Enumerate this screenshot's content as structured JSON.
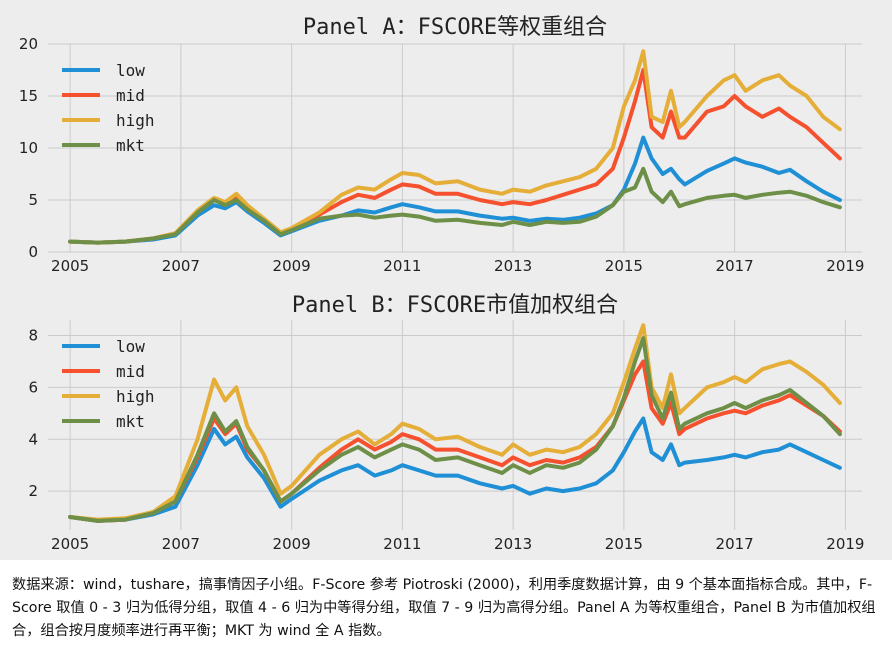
{
  "chart_data": [
    {
      "type": "line",
      "title": "Panel A：FSCORE等权重组合",
      "xlim": [
        2004.6,
        2019.3
      ],
      "ylim": [
        0,
        20
      ],
      "yticks": [
        0,
        5,
        10,
        15,
        20
      ],
      "xticks": [
        2005,
        2007,
        2009,
        2011,
        2013,
        2015,
        2017,
        2019
      ],
      "grid": true,
      "legend_position": "top-left",
      "series": [
        {
          "name": "low",
          "color": "#1f8fd6",
          "x": [
            2005.0,
            2005.5,
            2006.0,
            2006.5,
            2006.9,
            2007.3,
            2007.6,
            2007.8,
            2008.0,
            2008.2,
            2008.5,
            2008.8,
            2009.0,
            2009.5,
            2009.9,
            2010.2,
            2010.5,
            2010.8,
            2011.0,
            2011.3,
            2011.6,
            2012.0,
            2012.4,
            2012.8,
            2013.0,
            2013.3,
            2013.6,
            2013.9,
            2014.2,
            2014.5,
            2014.8,
            2015.0,
            2015.2,
            2015.35,
            2015.5,
            2015.7,
            2015.85,
            2016.0,
            2016.1,
            2016.5,
            2016.8,
            2017.0,
            2017.2,
            2017.5,
            2017.8,
            2018.0,
            2018.3,
            2018.6,
            2018.9
          ],
          "y": [
            1.0,
            0.9,
            1.0,
            1.2,
            1.6,
            3.5,
            4.5,
            4.2,
            4.8,
            3.9,
            2.8,
            1.6,
            2.0,
            3.0,
            3.5,
            4.0,
            3.8,
            4.3,
            4.6,
            4.3,
            3.9,
            3.9,
            3.5,
            3.2,
            3.3,
            3.0,
            3.2,
            3.1,
            3.3,
            3.7,
            4.5,
            6.0,
            8.5,
            11.0,
            9.0,
            7.5,
            8.0,
            7.0,
            6.5,
            7.8,
            8.5,
            9.0,
            8.6,
            8.2,
            7.6,
            7.9,
            6.8,
            5.8,
            5.0
          ]
        },
        {
          "name": "mid",
          "color": "#f5512e",
          "x": [
            2005.0,
            2005.5,
            2006.0,
            2006.5,
            2006.9,
            2007.3,
            2007.6,
            2007.8,
            2008.0,
            2008.2,
            2008.5,
            2008.8,
            2009.0,
            2009.5,
            2009.9,
            2010.2,
            2010.5,
            2010.8,
            2011.0,
            2011.3,
            2011.6,
            2012.0,
            2012.4,
            2012.8,
            2013.0,
            2013.3,
            2013.6,
            2013.9,
            2014.2,
            2014.5,
            2014.8,
            2015.0,
            2015.2,
            2015.35,
            2015.5,
            2015.7,
            2015.85,
            2016.0,
            2016.1,
            2016.5,
            2016.8,
            2017.0,
            2017.2,
            2017.5,
            2017.8,
            2018.0,
            2018.3,
            2018.6,
            2018.9
          ],
          "y": [
            1.0,
            0.9,
            1.0,
            1.3,
            1.8,
            3.8,
            5.0,
            4.6,
            5.2,
            4.3,
            3.0,
            1.8,
            2.2,
            3.6,
            4.8,
            5.5,
            5.2,
            6.0,
            6.5,
            6.3,
            5.6,
            5.6,
            5.0,
            4.6,
            4.8,
            4.6,
            5.0,
            5.5,
            6.0,
            6.5,
            8.0,
            11.0,
            14.5,
            17.5,
            12.0,
            11.0,
            13.5,
            11.0,
            11.0,
            13.5,
            14.0,
            15.0,
            14.0,
            13.0,
            13.8,
            13.0,
            12.0,
            10.5,
            9.0
          ]
        },
        {
          "name": "high",
          "color": "#e5ae38",
          "x": [
            2005.0,
            2005.5,
            2006.0,
            2006.5,
            2006.9,
            2007.3,
            2007.6,
            2007.8,
            2008.0,
            2008.2,
            2008.5,
            2008.8,
            2009.0,
            2009.5,
            2009.9,
            2010.2,
            2010.5,
            2010.8,
            2011.0,
            2011.3,
            2011.6,
            2012.0,
            2012.4,
            2012.8,
            2013.0,
            2013.3,
            2013.6,
            2013.9,
            2014.2,
            2014.5,
            2014.8,
            2015.0,
            2015.2,
            2015.35,
            2015.5,
            2015.7,
            2015.85,
            2016.0,
            2016.1,
            2016.5,
            2016.8,
            2017.0,
            2017.2,
            2017.5,
            2017.8,
            2018.0,
            2018.3,
            2018.6,
            2018.9
          ],
          "y": [
            1.0,
            0.9,
            1.0,
            1.3,
            1.8,
            4.0,
            5.2,
            4.8,
            5.6,
            4.5,
            3.2,
            1.9,
            2.3,
            3.8,
            5.5,
            6.2,
            6.0,
            7.0,
            7.6,
            7.4,
            6.6,
            6.8,
            6.0,
            5.6,
            6.0,
            5.8,
            6.4,
            6.8,
            7.2,
            8.0,
            10.0,
            14.0,
            16.5,
            19.3,
            13.0,
            12.5,
            15.5,
            12.0,
            12.5,
            15.0,
            16.5,
            17.0,
            15.5,
            16.5,
            17.0,
            16.0,
            15.0,
            13.0,
            11.8
          ]
        },
        {
          "name": "mkt",
          "color": "#6d8f47",
          "x": [
            2005.0,
            2005.5,
            2006.0,
            2006.5,
            2006.9,
            2007.3,
            2007.6,
            2007.8,
            2008.0,
            2008.2,
            2008.5,
            2008.8,
            2009.0,
            2009.5,
            2009.9,
            2010.2,
            2010.5,
            2010.8,
            2011.0,
            2011.3,
            2011.6,
            2012.0,
            2012.4,
            2012.8,
            2013.0,
            2013.3,
            2013.6,
            2013.9,
            2014.2,
            2014.5,
            2014.8,
            2015.0,
            2015.2,
            2015.35,
            2015.5,
            2015.7,
            2015.85,
            2016.0,
            2016.1,
            2016.5,
            2016.8,
            2017.0,
            2017.2,
            2017.5,
            2017.8,
            2018.0,
            2018.3,
            2018.6,
            2018.9
          ],
          "y": [
            1.0,
            0.9,
            1.0,
            1.3,
            1.7,
            3.8,
            5.0,
            4.5,
            5.0,
            4.1,
            3.0,
            1.7,
            2.1,
            3.2,
            3.5,
            3.6,
            3.3,
            3.5,
            3.6,
            3.4,
            3.0,
            3.1,
            2.8,
            2.6,
            2.9,
            2.6,
            2.9,
            2.8,
            2.9,
            3.4,
            4.5,
            5.8,
            6.2,
            8.0,
            5.8,
            4.8,
            5.8,
            4.4,
            4.6,
            5.2,
            5.4,
            5.5,
            5.2,
            5.5,
            5.7,
            5.8,
            5.4,
            4.8,
            4.3
          ]
        }
      ]
    },
    {
      "type": "line",
      "title": "Panel B：FSCORE市值加权组合",
      "xlim": [
        2004.6,
        2019.3
      ],
      "ylim": [
        0.5,
        8.6
      ],
      "yticks": [
        2,
        4,
        6,
        8
      ],
      "xticks": [
        2005,
        2007,
        2009,
        2011,
        2013,
        2015,
        2017,
        2019
      ],
      "grid": true,
      "legend_position": "top-left",
      "series": [
        {
          "name": "low",
          "color": "#1f8fd6",
          "x": [
            2005.0,
            2005.5,
            2006.0,
            2006.5,
            2006.9,
            2007.3,
            2007.6,
            2007.8,
            2008.0,
            2008.2,
            2008.5,
            2008.8,
            2009.0,
            2009.5,
            2009.9,
            2010.2,
            2010.5,
            2010.8,
            2011.0,
            2011.3,
            2011.6,
            2012.0,
            2012.4,
            2012.8,
            2013.0,
            2013.3,
            2013.6,
            2013.9,
            2014.2,
            2014.5,
            2014.8,
            2015.0,
            2015.2,
            2015.35,
            2015.5,
            2015.7,
            2015.85,
            2016.0,
            2016.1,
            2016.5,
            2016.8,
            2017.0,
            2017.2,
            2017.5,
            2017.8,
            2018.0,
            2018.3,
            2018.6,
            2018.9
          ],
          "y": [
            1.0,
            0.85,
            0.9,
            1.1,
            1.4,
            3.0,
            4.4,
            3.8,
            4.1,
            3.3,
            2.5,
            1.4,
            1.7,
            2.4,
            2.8,
            3.0,
            2.6,
            2.8,
            3.0,
            2.8,
            2.6,
            2.6,
            2.3,
            2.1,
            2.2,
            1.9,
            2.1,
            2.0,
            2.1,
            2.3,
            2.8,
            3.5,
            4.3,
            4.8,
            3.5,
            3.2,
            3.8,
            3.0,
            3.1,
            3.2,
            3.3,
            3.4,
            3.3,
            3.5,
            3.6,
            3.8,
            3.5,
            3.2,
            2.9
          ]
        },
        {
          "name": "mid",
          "color": "#f5512e",
          "x": [
            2005.0,
            2005.5,
            2006.0,
            2006.5,
            2006.9,
            2007.3,
            2007.6,
            2007.8,
            2008.0,
            2008.2,
            2008.5,
            2008.8,
            2009.0,
            2009.5,
            2009.9,
            2010.2,
            2010.5,
            2010.8,
            2011.0,
            2011.3,
            2011.6,
            2012.0,
            2012.4,
            2012.8,
            2013.0,
            2013.3,
            2013.6,
            2013.9,
            2014.2,
            2014.5,
            2014.8,
            2015.0,
            2015.2,
            2015.35,
            2015.5,
            2015.7,
            2015.85,
            2016.0,
            2016.1,
            2016.5,
            2016.8,
            2017.0,
            2017.2,
            2017.5,
            2017.8,
            2018.0,
            2018.3,
            2018.6,
            2018.9
          ],
          "y": [
            1.0,
            0.85,
            0.9,
            1.15,
            1.6,
            3.3,
            4.8,
            4.2,
            4.6,
            3.6,
            2.8,
            1.6,
            1.9,
            2.9,
            3.6,
            4.0,
            3.6,
            3.9,
            4.2,
            4.0,
            3.6,
            3.6,
            3.3,
            3.0,
            3.3,
            3.0,
            3.2,
            3.1,
            3.3,
            3.7,
            4.5,
            5.5,
            6.5,
            7.0,
            5.2,
            4.6,
            5.4,
            4.2,
            4.4,
            4.8,
            5.0,
            5.1,
            5.0,
            5.3,
            5.5,
            5.7,
            5.3,
            4.9,
            4.3
          ]
        },
        {
          "name": "high",
          "color": "#e5ae38",
          "x": [
            2005.0,
            2005.5,
            2006.0,
            2006.5,
            2006.9,
            2007.3,
            2007.6,
            2007.8,
            2008.0,
            2008.2,
            2008.5,
            2008.8,
            2009.0,
            2009.5,
            2009.9,
            2010.2,
            2010.5,
            2010.8,
            2011.0,
            2011.3,
            2011.6,
            2012.0,
            2012.4,
            2012.8,
            2013.0,
            2013.3,
            2013.6,
            2013.9,
            2014.2,
            2014.5,
            2014.8,
            2015.0,
            2015.2,
            2015.35,
            2015.5,
            2015.7,
            2015.85,
            2016.0,
            2016.1,
            2016.5,
            2016.8,
            2017.0,
            2017.2,
            2017.5,
            2017.8,
            2018.0,
            2018.3,
            2018.6,
            2018.9
          ],
          "y": [
            1.0,
            0.9,
            0.95,
            1.2,
            1.8,
            4.0,
            6.3,
            5.5,
            6.0,
            4.5,
            3.4,
            1.9,
            2.2,
            3.4,
            4.0,
            4.3,
            3.8,
            4.2,
            4.6,
            4.4,
            4.0,
            4.1,
            3.7,
            3.4,
            3.8,
            3.4,
            3.6,
            3.5,
            3.7,
            4.2,
            5.0,
            6.2,
            7.5,
            8.4,
            6.0,
            5.2,
            6.5,
            5.0,
            5.2,
            6.0,
            6.2,
            6.4,
            6.2,
            6.7,
            6.9,
            7.0,
            6.6,
            6.1,
            5.4
          ]
        },
        {
          "name": "mkt",
          "color": "#6d8f47",
          "x": [
            2005.0,
            2005.5,
            2006.0,
            2006.5,
            2006.9,
            2007.3,
            2007.6,
            2007.8,
            2008.0,
            2008.2,
            2008.5,
            2008.8,
            2009.0,
            2009.5,
            2009.9,
            2010.2,
            2010.5,
            2010.8,
            2011.0,
            2011.3,
            2011.6,
            2012.0,
            2012.4,
            2012.8,
            2013.0,
            2013.3,
            2013.6,
            2013.9,
            2014.2,
            2014.5,
            2014.8,
            2015.0,
            2015.2,
            2015.35,
            2015.5,
            2015.7,
            2015.85,
            2016.0,
            2016.1,
            2016.5,
            2016.8,
            2017.0,
            2017.2,
            2017.5,
            2017.8,
            2018.0,
            2018.3,
            2018.6,
            2018.9
          ],
          "y": [
            1.0,
            0.85,
            0.9,
            1.15,
            1.6,
            3.4,
            5.0,
            4.3,
            4.7,
            3.7,
            2.8,
            1.6,
            1.9,
            2.8,
            3.4,
            3.7,
            3.3,
            3.6,
            3.8,
            3.6,
            3.2,
            3.3,
            3.0,
            2.7,
            3.0,
            2.7,
            3.0,
            2.9,
            3.1,
            3.6,
            4.5,
            5.6,
            7.0,
            7.9,
            5.7,
            4.8,
            5.8,
            4.4,
            4.6,
            5.0,
            5.2,
            5.4,
            5.2,
            5.5,
            5.7,
            5.9,
            5.4,
            4.9,
            4.2
          ]
        }
      ]
    }
  ],
  "caption": "数据来源：wind，tushare，搞事情因子小组。F-Score 参考 Piotroski (2000)，利用季度数据计算，由 9 个基本面指标合成。其中，F-Score 取值 0 - 3 归为低得分组，取值 4 - 6 归为中等得分组，取值 7 - 9 归为高得分组。Panel A 为等权重组合，Panel B 为市值加权组合，组合按月度频率进行再平衡；MKT 为 wind 全 A 指数。"
}
